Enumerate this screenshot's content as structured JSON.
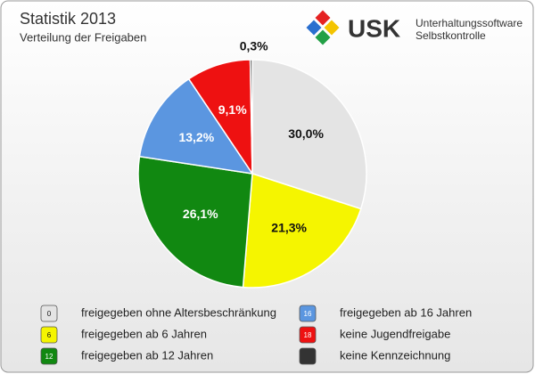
{
  "chart_data": {
    "type": "pie",
    "title": "Statistik 2013",
    "subtitle": "Verteilung der Freigaben",
    "categories": [
      "freigegeben ohne Altersbeschränkung",
      "freigegeben ab 6 Jahren",
      "freigegeben ab 12 Jahren",
      "freigegeben ab 16 Jahren",
      "keine Jugendfreigabe",
      "keine Kennzeichnung"
    ],
    "values": [
      30.0,
      21.3,
      26.1,
      13.2,
      9.1,
      0.3
    ],
    "value_labels": [
      "30,0%",
      "21,3%",
      "26,1%",
      "13,2%",
      "9,1%",
      "0,3%"
    ],
    "colors": [
      "#e4e4e4",
      "#f5f500",
      "#118811",
      "#5b96e0",
      "#ee1111",
      "#333333"
    ],
    "badges": [
      "0",
      "6",
      "12",
      "16",
      "18",
      null
    ]
  },
  "logo": {
    "text": "USK",
    "lines": [
      "Unterhaltungssoftware",
      "Selbstkontrolle"
    ]
  }
}
